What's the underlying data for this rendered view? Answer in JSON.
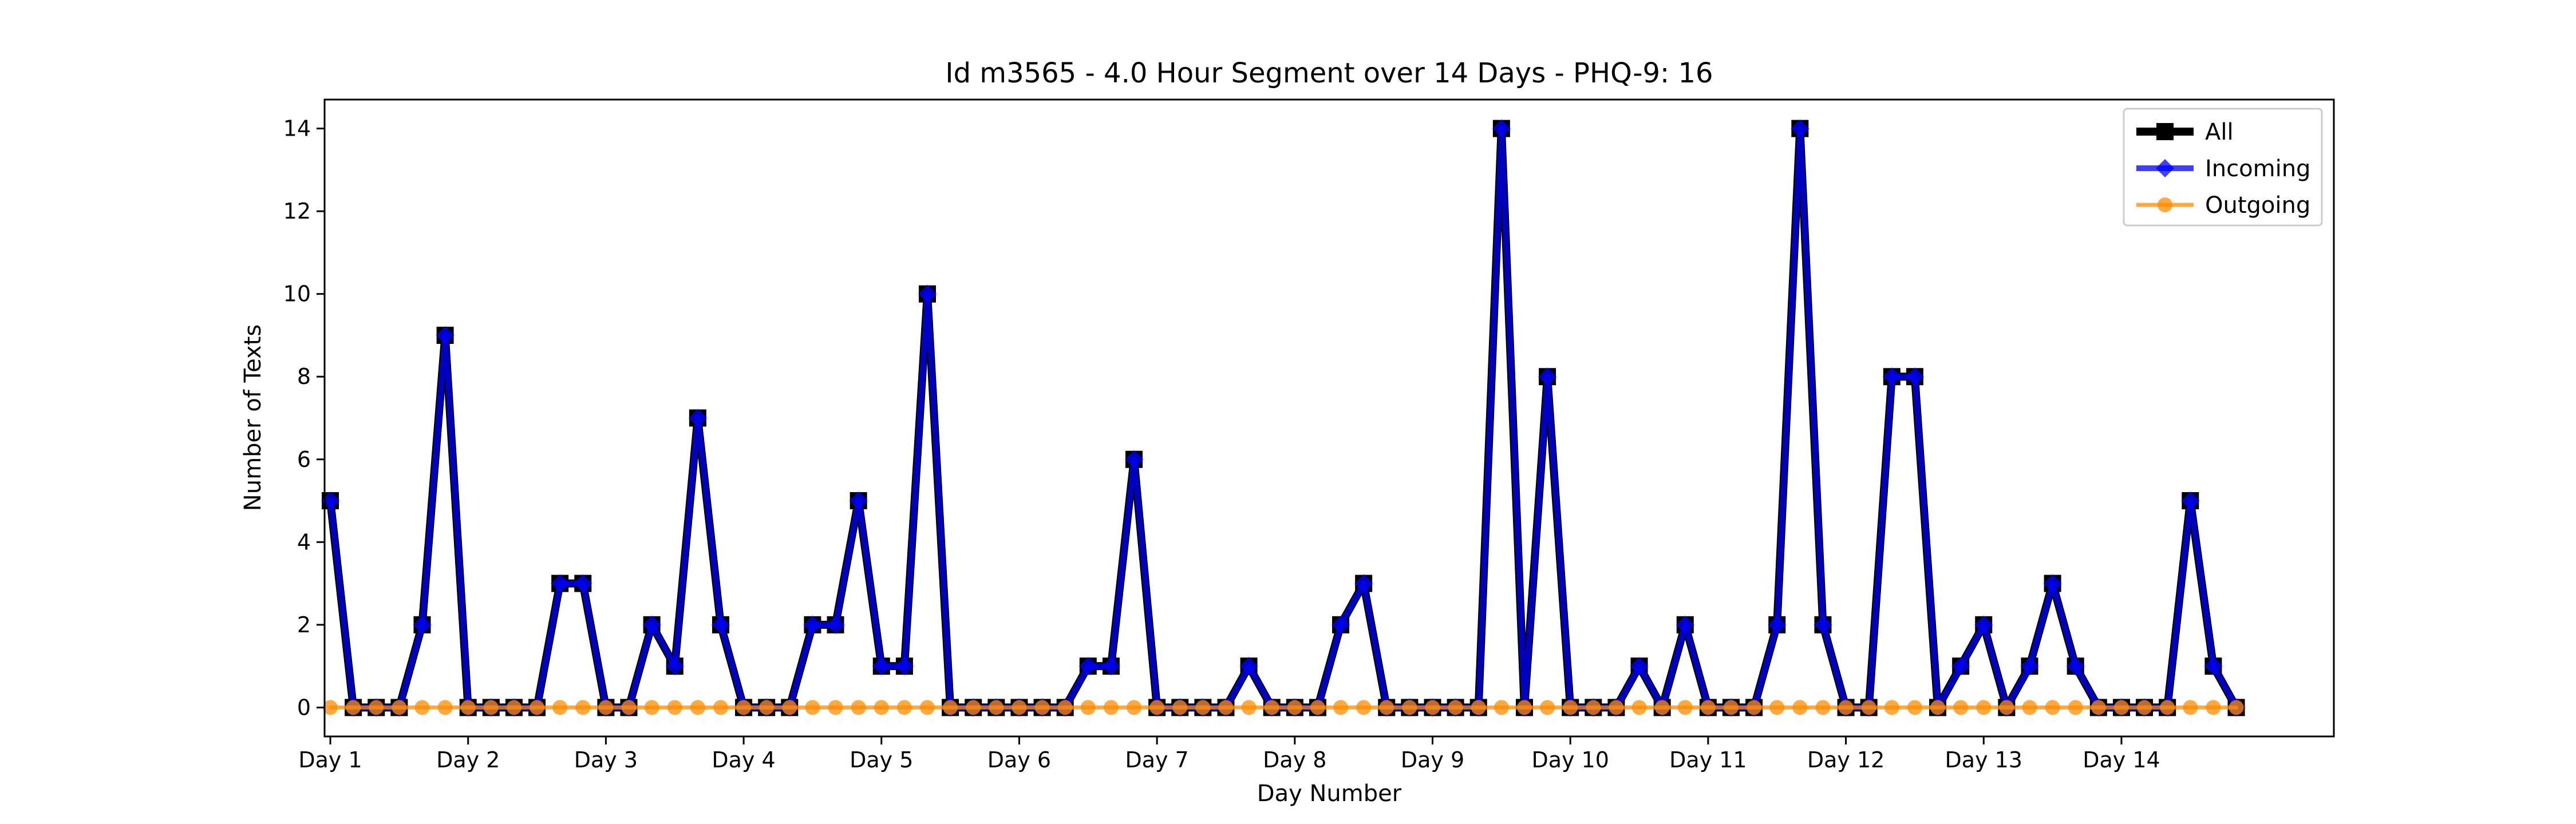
{
  "chart_data": {
    "type": "line",
    "title": "Id m3565 - 4.0 Hour Segment over 14 Days - PHQ-9: 16",
    "xlabel": "Day Number",
    "ylabel": "Number of Texts",
    "xlim": [
      -0.25,
      87.25
    ],
    "ylim": [
      -0.7,
      14.7
    ],
    "yticks": [
      0,
      2,
      4,
      6,
      8,
      10,
      12,
      14
    ],
    "xticks": [
      {
        "x": 0,
        "label": "Day 1"
      },
      {
        "x": 6,
        "label": "Day 2"
      },
      {
        "x": 12,
        "label": "Day 3"
      },
      {
        "x": 18,
        "label": "Day 4"
      },
      {
        "x": 24,
        "label": "Day 5"
      },
      {
        "x": 30,
        "label": "Day 6"
      },
      {
        "x": 36,
        "label": "Day 7"
      },
      {
        "x": 42,
        "label": "Day 8"
      },
      {
        "x": 48,
        "label": "Day 9"
      },
      {
        "x": 54,
        "label": "Day 10"
      },
      {
        "x": 60,
        "label": "Day 11"
      },
      {
        "x": 66,
        "label": "Day 12"
      },
      {
        "x": 72,
        "label": "Day 13"
      },
      {
        "x": 78,
        "label": "Day 14"
      }
    ],
    "grid": false,
    "legend_position": "upper right",
    "series": [
      {
        "name": "All",
        "color": "#000000",
        "marker": "square",
        "values": [
          5,
          0,
          0,
          0,
          2,
          9,
          0,
          0,
          0,
          0,
          3,
          3,
          0,
          0,
          2,
          1,
          7,
          2,
          0,
          0,
          0,
          2,
          2,
          5,
          1,
          1,
          10,
          0,
          0,
          0,
          0,
          0,
          0,
          1,
          1,
          6,
          0,
          0,
          0,
          0,
          1,
          0,
          0,
          0,
          2,
          3,
          0,
          0,
          0,
          0,
          0,
          14,
          0,
          8,
          0,
          0,
          0,
          1,
          0,
          2,
          0,
          0,
          0,
          2,
          14,
          2,
          0,
          0,
          8,
          8,
          0,
          1,
          2,
          0,
          1,
          3,
          1,
          0,
          0,
          0,
          0,
          5,
          1,
          0
        ]
      },
      {
        "name": "Incoming",
        "color": "#0000ff",
        "marker": "diamond",
        "values": [
          5,
          0,
          0,
          0,
          2,
          9,
          0,
          0,
          0,
          0,
          3,
          3,
          0,
          0,
          2,
          1,
          7,
          2,
          0,
          0,
          0,
          2,
          2,
          5,
          1,
          1,
          10,
          0,
          0,
          0,
          0,
          0,
          0,
          1,
          1,
          6,
          0,
          0,
          0,
          0,
          1,
          0,
          0,
          0,
          2,
          3,
          0,
          0,
          0,
          0,
          0,
          14,
          0,
          8,
          0,
          0,
          0,
          1,
          0,
          2,
          0,
          0,
          0,
          2,
          14,
          2,
          0,
          0,
          8,
          8,
          0,
          1,
          2,
          0,
          1,
          3,
          1,
          0,
          0,
          0,
          0,
          5,
          1,
          0
        ]
      },
      {
        "name": "Outgoing",
        "color": "#ff8c00",
        "marker": "circle",
        "values": [
          0,
          0,
          0,
          0,
          0,
          0,
          0,
          0,
          0,
          0,
          0,
          0,
          0,
          0,
          0,
          0,
          0,
          0,
          0,
          0,
          0,
          0,
          0,
          0,
          0,
          0,
          0,
          0,
          0,
          0,
          0,
          0,
          0,
          0,
          0,
          0,
          0,
          0,
          0,
          0,
          0,
          0,
          0,
          0,
          0,
          0,
          0,
          0,
          0,
          0,
          0,
          0,
          0,
          0,
          0,
          0,
          0,
          0,
          0,
          0,
          0,
          0,
          0,
          0,
          0,
          0,
          0,
          0,
          0,
          0,
          0,
          0,
          0,
          0,
          0,
          0,
          0,
          0,
          0,
          0,
          0,
          0,
          0,
          0
        ]
      }
    ]
  }
}
